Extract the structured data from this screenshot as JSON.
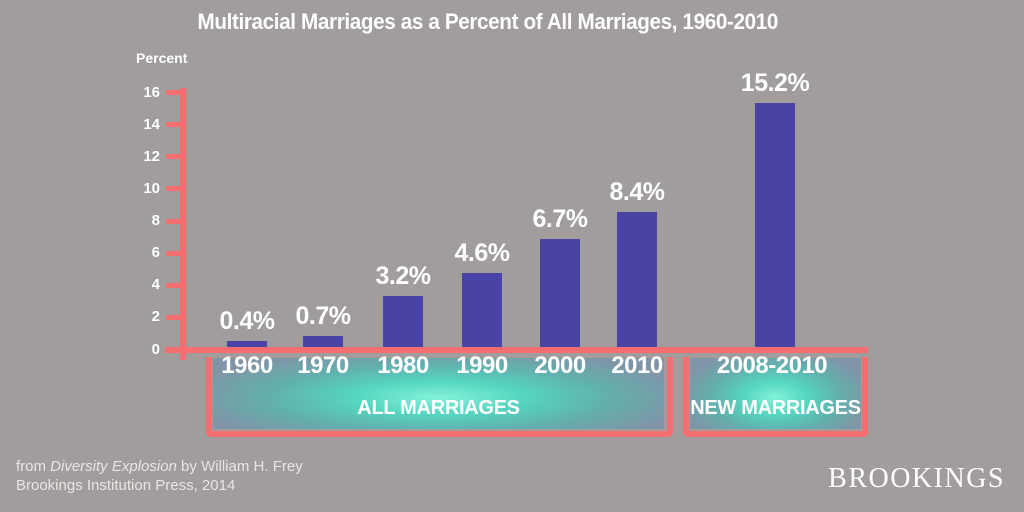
{
  "title": "Multiracial Marriages as a Percent of All Marriages, 1960-2010",
  "chart_data": {
    "type": "bar",
    "categories": [
      "1960",
      "1970",
      "1980",
      "1990",
      "2000",
      "2010",
      "2008-2010"
    ],
    "values": [
      0.4,
      0.7,
      3.2,
      4.6,
      6.7,
      8.4,
      15.2
    ],
    "value_labels": [
      "0.4%",
      "0.7%",
      "3.2%",
      "4.6%",
      "6.7%",
      "8.4%",
      "15.2%"
    ],
    "groups": [
      {
        "label": "ALL MARRIAGES",
        "categories": [
          "1960",
          "1970",
          "1980",
          "1990",
          "2000",
          "2010"
        ]
      },
      {
        "label": "NEW MARRIAGES",
        "categories": [
          "2008-2010"
        ]
      }
    ],
    "ylabel": "Percent",
    "xlabel": "",
    "ylim": [
      0,
      16
    ],
    "ytick_step": 2,
    "yticks": [
      0,
      2,
      4,
      6,
      8,
      10,
      12,
      14,
      16
    ],
    "grid": false,
    "legend": false
  },
  "colors": {
    "background": "#a09d9c",
    "bar": "#4a43a6",
    "axis": "#f56e71",
    "text": "#ffffff",
    "glow_center": "#84f2da",
    "box_edge": "#8095a7"
  },
  "footer": {
    "citation_prefix": "from ",
    "citation_book": "Diversity Explosion",
    "citation_suffix": " by William H. Frey",
    "citation_line2": "Brookings Institution Press, 2014",
    "brand": "BROOKINGS"
  }
}
